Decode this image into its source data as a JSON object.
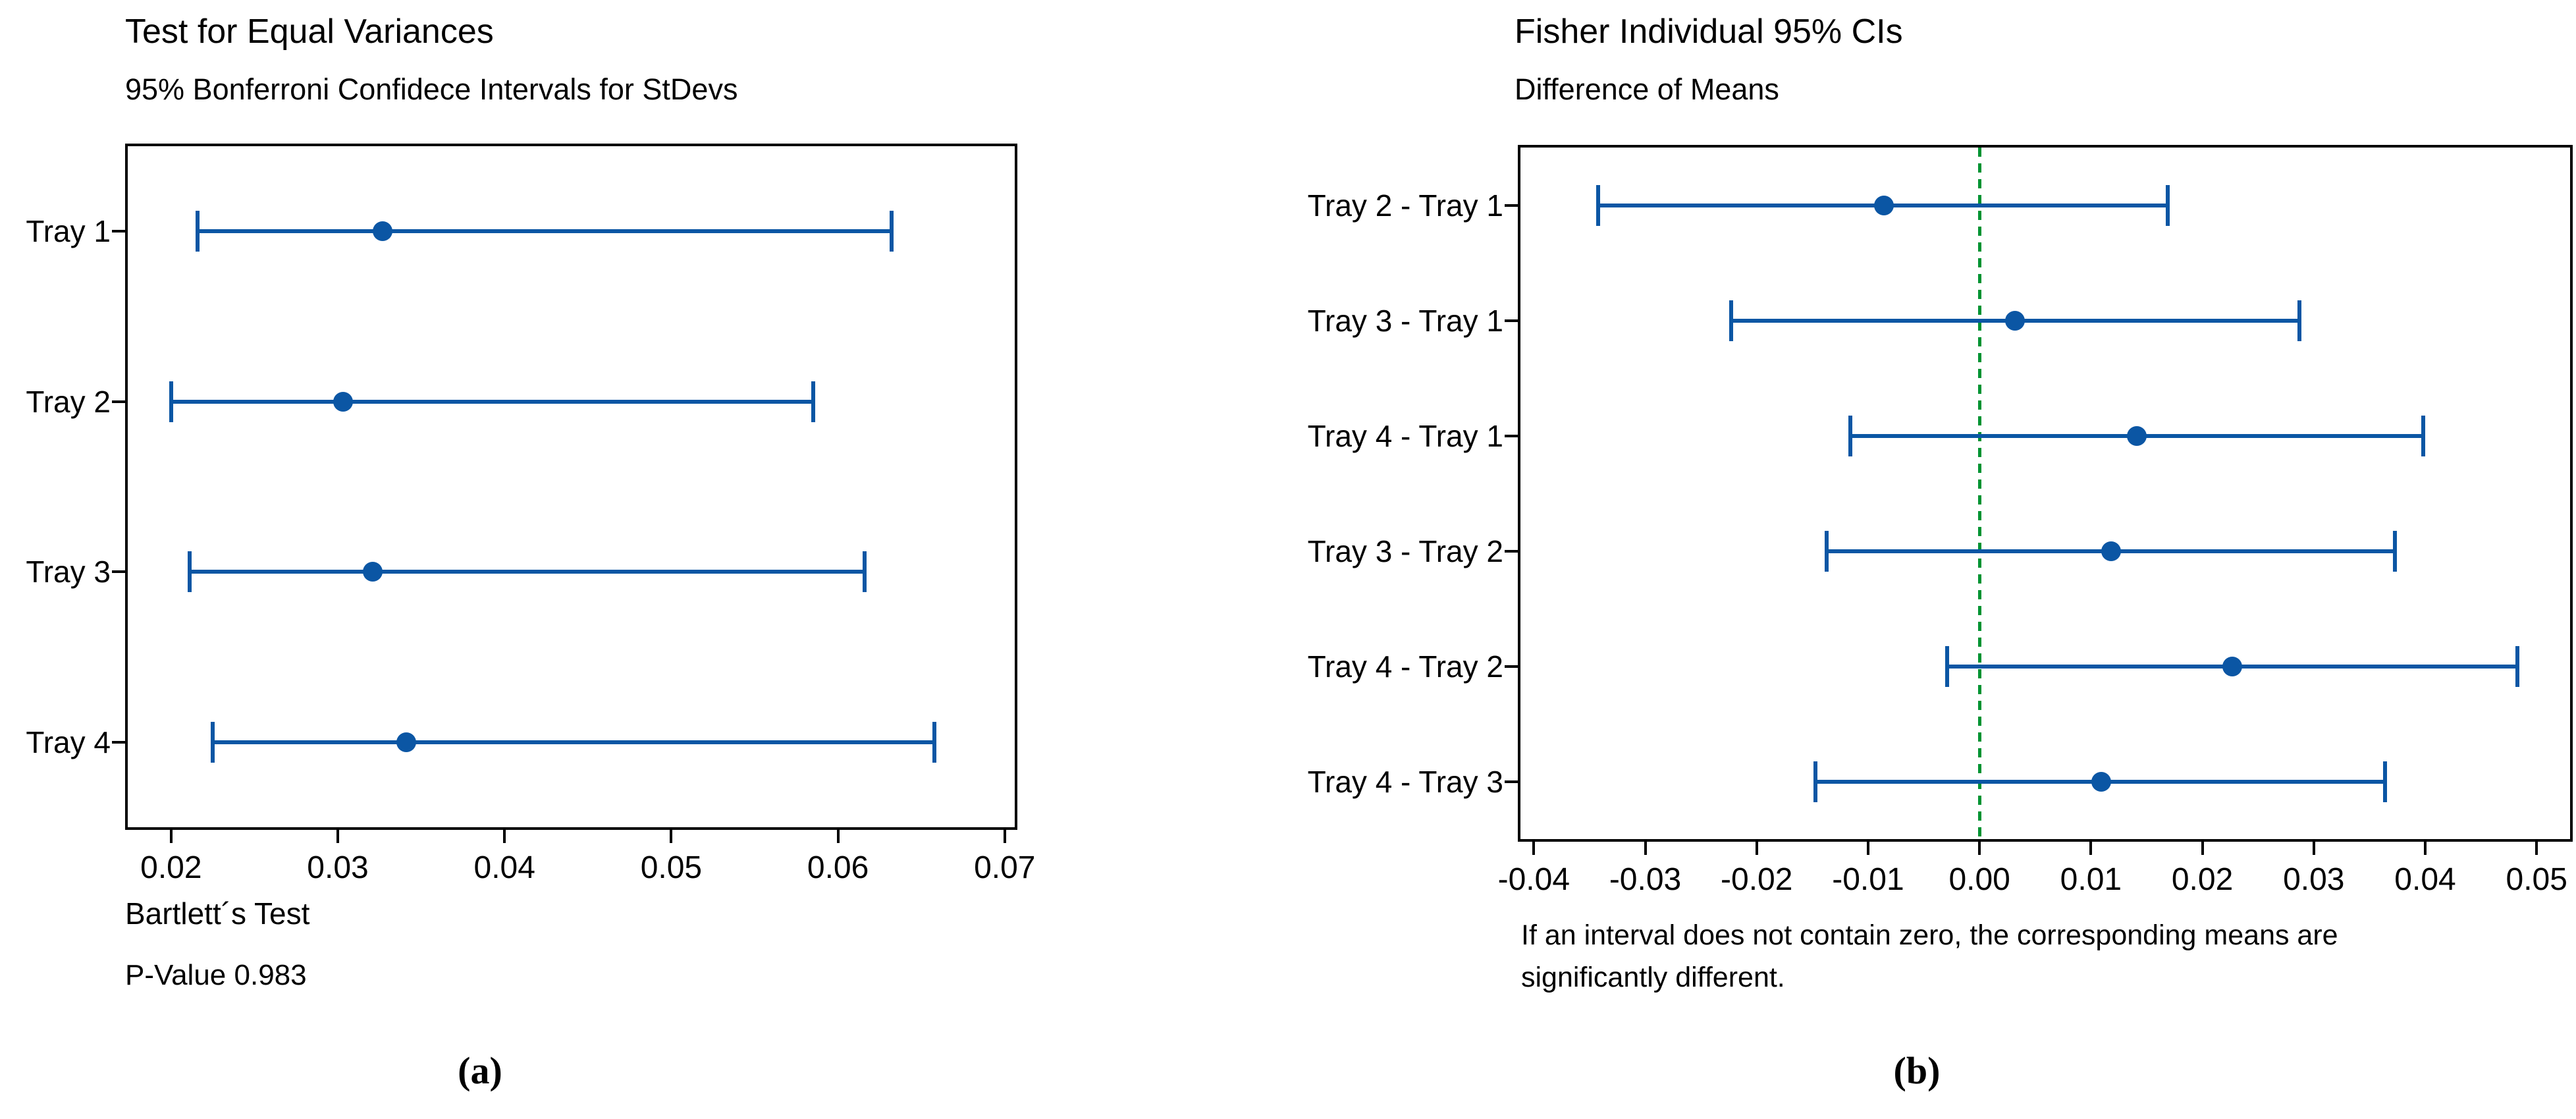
{
  "colors": {
    "interval_blue": "#0b56a4",
    "zero_line_green": "#009332",
    "axis_black": "#000000",
    "background": "#ffffff"
  },
  "chart_data": [
    {
      "id": "a",
      "type": "interval",
      "orientation": "horizontal",
      "title": "Test for Equal Variances",
      "subtitle": "95% Bonferroni Confidece Intervals for StDevs",
      "caption": "(a)",
      "categories": [
        "Tray 1",
        "Tray 2",
        "Tray 3",
        "Tray 4"
      ],
      "intervals": [
        {
          "low": 0.0216,
          "center": 0.0327,
          "high": 0.0632
        },
        {
          "low": 0.02,
          "center": 0.0303,
          "high": 0.0585
        },
        {
          "low": 0.0211,
          "center": 0.0321,
          "high": 0.0616
        },
        {
          "low": 0.0225,
          "center": 0.0341,
          "high": 0.0658
        }
      ],
      "xlim": [
        0.0174,
        0.0706
      ],
      "xticks": [
        0.02,
        0.03,
        0.04,
        0.05,
        0.06,
        0.07
      ],
      "xtick_labels": [
        "0.02",
        "0.03",
        "0.04",
        "0.05",
        "0.06",
        "0.07"
      ],
      "xlabel": "",
      "grid": "off",
      "legend": "none",
      "zero_line": null,
      "footer_lines": [
        "Bartlett´s Test",
        "P-Value 0.983"
      ]
    },
    {
      "id": "b",
      "type": "interval",
      "orientation": "horizontal",
      "title": "Fisher Individual 95% CIs",
      "subtitle": "Difference of Means",
      "caption": "(b)",
      "categories": [
        "Tray 2 - Tray 1",
        "Tray 3 - Tray 1",
        "Tray 4 - Tray 1",
        "Tray 3 - Tray 2",
        "Tray 4 - Tray 2",
        "Tray 4 - Tray 3"
      ],
      "intervals": [
        {
          "low": -0.0342,
          "center": -0.0086,
          "high": 0.0169
        },
        {
          "low": -0.0223,
          "center": 0.0032,
          "high": 0.0287
        },
        {
          "low": -0.0116,
          "center": 0.0141,
          "high": 0.0398
        },
        {
          "low": -0.0137,
          "center": 0.0118,
          "high": 0.0373
        },
        {
          "low": -0.0029,
          "center": 0.0227,
          "high": 0.0483
        },
        {
          "low": -0.0147,
          "center": 0.0109,
          "high": 0.0364
        }
      ],
      "xlim": [
        -0.0412,
        0.053
      ],
      "xticks": [
        -0.04,
        -0.03,
        -0.02,
        -0.01,
        0.0,
        0.01,
        0.02,
        0.03,
        0.04,
        0.05
      ],
      "xtick_labels": [
        "-0.04",
        "-0.03",
        "-0.02",
        "-0.01",
        "0.00",
        "0.01",
        "0.02",
        "0.03",
        "0.04",
        "0.05"
      ],
      "xlabel": "",
      "grid": "off",
      "legend": "none",
      "zero_line": 0,
      "footer_lines": [
        "If an interval does not contain zero, the corresponding means are",
        "significantly different."
      ]
    }
  ]
}
